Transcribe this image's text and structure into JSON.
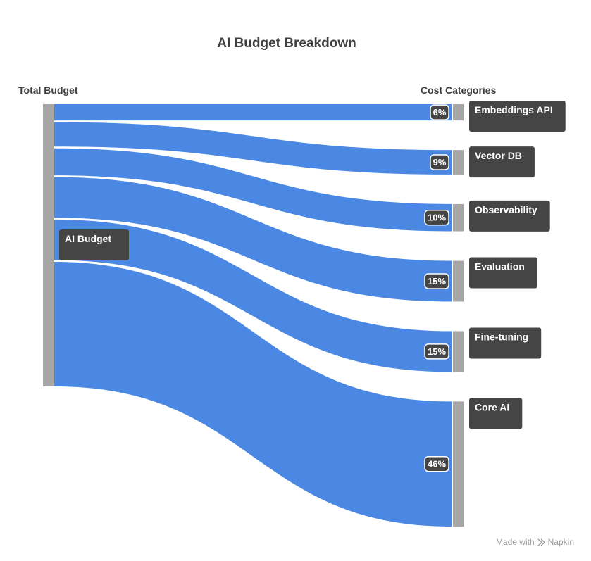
{
  "chart_data": {
    "type": "sankey",
    "title": "AI Budget Breakdown",
    "source_column_label": "Total Budget",
    "target_column_label": "Cost Categories",
    "source": "AI Budget",
    "flows": [
      {
        "target": "Embeddings API",
        "value": 6,
        "label": "6%"
      },
      {
        "target": "Vector DB",
        "value": 9,
        "label": "9%"
      },
      {
        "target": "Observability",
        "value": 10,
        "label": "10%"
      },
      {
        "target": "Evaluation",
        "value": 15,
        "label": "15%"
      },
      {
        "target": "Fine-tuning",
        "value": 15,
        "label": "15%"
      },
      {
        "target": "Core AI",
        "value": 46,
        "label": "46%"
      }
    ]
  },
  "colors": {
    "flow": "#4b88e3",
    "node_bar": "#a6a6a6",
    "label_box": "#454545",
    "title": "#3f3f3f"
  },
  "credit": {
    "prefix": "Made with",
    "brand": "Napkin",
    "icon": "napkin-logo-icon"
  }
}
